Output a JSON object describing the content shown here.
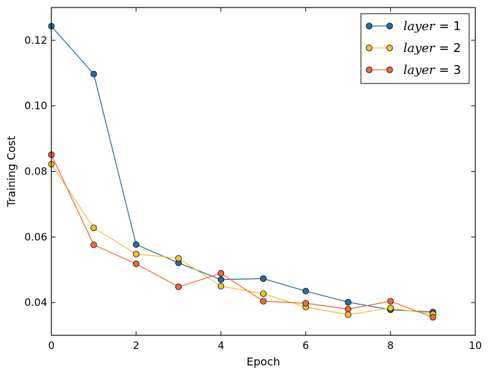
{
  "chart_data": {
    "type": "line",
    "xlabel": "Epoch",
    "ylabel": "Training Cost",
    "xlim": [
      0,
      10
    ],
    "ylim": [
      0.03,
      0.13
    ],
    "x_ticks": [
      0,
      2,
      4,
      6,
      8,
      10
    ],
    "x_tick_labels": [
      "0",
      "2",
      "4",
      "6",
      "8",
      "10"
    ],
    "y_ticks": [
      0.04,
      0.06,
      0.08,
      0.1,
      0.12
    ],
    "y_tick_labels": [
      "0.04",
      "0.06",
      "0.08",
      "0.10",
      "0.12"
    ],
    "grid": false,
    "legend_position": "top-right",
    "x": [
      0,
      1,
      2,
      3,
      4,
      5,
      6,
      7,
      8,
      9
    ],
    "series": [
      {
        "name": "layer = 1",
        "name_var": "layer",
        "name_eq": "= 1",
        "color": "#2b6aa3",
        "values": [
          0.1243,
          0.1097,
          0.0577,
          0.0521,
          0.047,
          0.0473,
          0.0435,
          0.0401,
          0.0378,
          0.0371
        ]
      },
      {
        "name": "layer = 2",
        "name_var": "layer",
        "name_eq": "= 2",
        "color": "#f5c12e",
        "values": [
          0.0822,
          0.0628,
          0.0548,
          0.0535,
          0.045,
          0.0427,
          0.0386,
          0.0363,
          0.0383,
          0.0365
        ]
      },
      {
        "name": "layer = 3",
        "name_var": "layer",
        "name_eq": "= 3",
        "color": "#f0693a",
        "values": [
          0.0851,
          0.0576,
          0.0518,
          0.0448,
          0.0489,
          0.0404,
          0.0398,
          0.038,
          0.0404,
          0.0355
        ]
      }
    ]
  }
}
